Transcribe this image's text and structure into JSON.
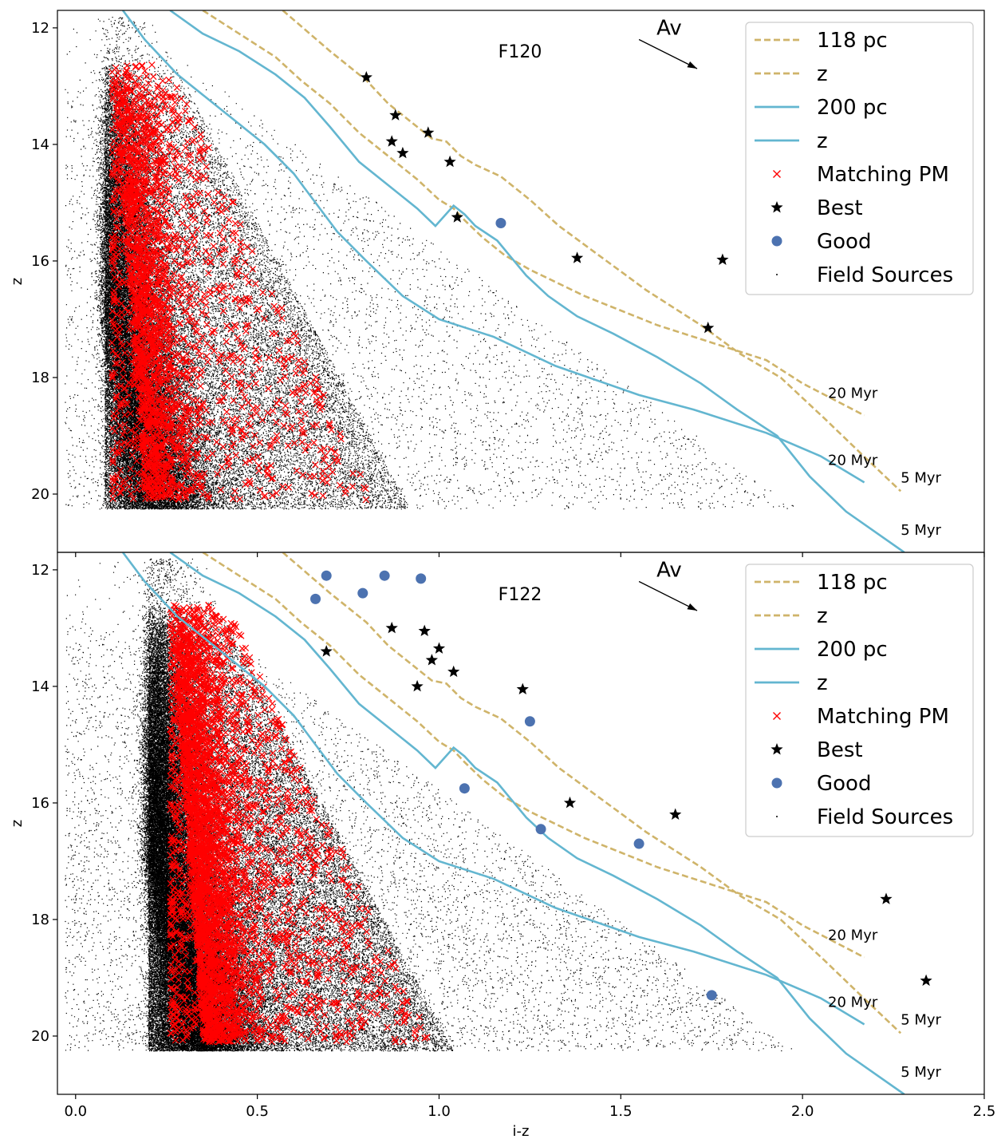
{
  "chart_data": [
    {
      "type": "scatter",
      "panel_label": "F120",
      "xlabel": "",
      "ylabel": "z",
      "xlim": [
        -0.05,
        2.5
      ],
      "ylim": [
        21.0,
        11.7
      ],
      "yticks": [
        12,
        14,
        16,
        18,
        20
      ],
      "xticks": [
        0.0,
        0.5,
        1.0,
        1.5,
        2.0,
        2.5
      ],
      "show_xticklabels": false,
      "reddening_vector": {
        "label": "Av",
        "from": [
          1.55,
          12.2
        ],
        "to": [
          1.71,
          12.7
        ]
      },
      "legend": {
        "position": "top-right",
        "entries": [
          "118 pc",
          "z",
          "200 pc",
          "z",
          "Matching PM",
          "Best",
          "Good",
          "Field Sources"
        ]
      },
      "isochrones": [
        {
          "name": "118 pc",
          "age_label": "20 Myr",
          "color": "#cfb46a",
          "style": "dashed",
          "x": [
            0.35,
            0.45,
            0.55,
            0.62,
            0.7,
            0.78,
            0.86,
            0.94,
            1.0,
            1.04,
            1.07,
            1.12,
            1.18,
            1.25,
            1.3,
            1.4,
            1.5,
            1.6,
            1.75,
            1.9,
            2.0,
            2.17
          ],
          "y": [
            11.7,
            12.1,
            12.5,
            12.9,
            13.3,
            13.8,
            14.2,
            14.6,
            14.95,
            15.1,
            15.3,
            15.6,
            15.9,
            16.15,
            16.3,
            16.6,
            16.85,
            17.1,
            17.4,
            17.7,
            18.1,
            18.65
          ],
          "label_at": [
            2.07,
            18.35
          ]
        },
        {
          "name": "118 pc",
          "age_label": "5 Myr",
          "color": "#cfb46a",
          "style": "dashed",
          "x": [
            0.57,
            0.7,
            0.8,
            0.86,
            0.92,
            0.98,
            1.02,
            1.06,
            1.1,
            1.17,
            1.25,
            1.33,
            1.45,
            1.57,
            1.72,
            1.83,
            1.94,
            2.06,
            2.16,
            2.27
          ],
          "y": [
            11.7,
            12.4,
            12.9,
            13.3,
            13.6,
            13.9,
            13.95,
            14.2,
            14.35,
            14.55,
            14.95,
            15.4,
            15.95,
            16.5,
            17.1,
            17.6,
            18.0,
            18.7,
            19.3,
            19.95
          ],
          "label_at": [
            2.27,
            19.8
          ]
        },
        {
          "name": "200 pc",
          "age_label": "20 Myr",
          "color": "#63b6d0",
          "style": "solid",
          "x": [
            0.13,
            0.19,
            0.28,
            0.4,
            0.52,
            0.6,
            0.66,
            0.72,
            0.8,
            0.9,
            1.0,
            1.15,
            1.32,
            1.55,
            1.7,
            1.9,
            2.05,
            2.17
          ],
          "y": [
            11.7,
            12.2,
            12.8,
            13.4,
            14.0,
            14.5,
            15.0,
            15.5,
            16.0,
            16.6,
            17.0,
            17.3,
            17.8,
            18.3,
            18.55,
            18.95,
            19.35,
            19.8
          ],
          "label_at": [
            2.07,
            19.5
          ]
        },
        {
          "name": "200 pc",
          "age_label": "5 Myr",
          "color": "#63b6d0",
          "style": "solid",
          "x": [
            0.26,
            0.35,
            0.45,
            0.55,
            0.63,
            0.7,
            0.78,
            0.86,
            0.94,
            0.99,
            1.04,
            1.07,
            1.1,
            1.16,
            1.24,
            1.3,
            1.38,
            1.48,
            1.6,
            1.72,
            1.82,
            1.93,
            2.02,
            2.12,
            2.28
          ],
          "y": [
            11.7,
            12.1,
            12.4,
            12.8,
            13.2,
            13.7,
            14.3,
            14.7,
            15.1,
            15.4,
            15.05,
            15.2,
            15.4,
            15.65,
            16.25,
            16.6,
            16.95,
            17.25,
            17.65,
            18.1,
            18.55,
            19.0,
            19.7,
            20.3,
            21.0
          ],
          "label_at": [
            2.27,
            20.7
          ]
        }
      ],
      "series": [
        {
          "name": "Best",
          "marker": "star",
          "color": "#000000",
          "x": [
            0.8,
            0.88,
            0.97,
            0.87,
            0.9,
            1.03,
            1.05,
            1.38,
            1.78,
            1.74
          ],
          "y": [
            12.85,
            13.5,
            13.8,
            13.95,
            14.15,
            14.3,
            15.25,
            15.95,
            15.98,
            17.15
          ]
        },
        {
          "name": "Good",
          "marker": "circle",
          "color": "#4c72b0",
          "x": [
            1.17
          ],
          "y": [
            15.35
          ]
        },
        {
          "name": "Matching PM",
          "marker": "x",
          "color": "#ff0000",
          "count_estimate": 2500
        },
        {
          "name": "Field Sources",
          "marker": "dot",
          "color": "#000000",
          "count_estimate": 60000
        }
      ]
    },
    {
      "type": "scatter",
      "panel_label": "F122",
      "xlabel": "i-z",
      "ylabel": "z",
      "xlim": [
        -0.05,
        2.5
      ],
      "ylim": [
        21.0,
        11.7
      ],
      "yticks": [
        12,
        14,
        16,
        18,
        20
      ],
      "xticks": [
        0.0,
        0.5,
        1.0,
        1.5,
        2.0,
        2.5
      ],
      "xticklabels": [
        "0.0",
        "0.5",
        "1.0",
        "1.5",
        "2.0",
        "2.5"
      ],
      "show_xticklabels": true,
      "reddening_vector": {
        "label": "Av",
        "from": [
          1.55,
          12.2
        ],
        "to": [
          1.71,
          12.7
        ]
      },
      "legend": {
        "position": "top-right",
        "entries": [
          "118 pc",
          "z",
          "200 pc",
          "z",
          "Matching PM",
          "Best",
          "Good",
          "Field Sources"
        ]
      },
      "isochrones_same_as_panel_1": true,
      "series": [
        {
          "name": "Best",
          "marker": "star",
          "color": "#000000",
          "x": [
            0.87,
            0.96,
            1.0,
            0.69,
            0.98,
            1.04,
            0.94,
            1.23,
            1.36,
            1.65,
            2.23,
            2.34
          ],
          "y": [
            13.0,
            13.05,
            13.35,
            13.4,
            13.55,
            13.75,
            14.0,
            14.05,
            16.0,
            16.2,
            17.65,
            19.05
          ]
        },
        {
          "name": "Good",
          "marker": "circle",
          "color": "#4c72b0",
          "x": [
            0.69,
            0.85,
            0.95,
            0.66,
            0.79,
            1.25,
            1.07,
            1.28,
            1.55,
            1.75
          ],
          "y": [
            12.1,
            12.1,
            12.15,
            12.5,
            12.4,
            14.6,
            15.75,
            16.45,
            16.7,
            19.3
          ]
        },
        {
          "name": "Matching PM",
          "marker": "x",
          "color": "#ff0000",
          "count_estimate": 4000
        },
        {
          "name": "Field Sources",
          "marker": "dot",
          "color": "#000000",
          "count_estimate": 90000
        }
      ]
    }
  ],
  "legend_entries": [
    "118 pc",
    "z",
    "200 pc",
    "z",
    "Matching PM",
    "Best",
    "Good",
    "Field Sources"
  ],
  "colors": {
    "gold": "#cfb46a",
    "cyan": "#63b6d0",
    "red": "#ff0000",
    "good": "#4c72b0"
  }
}
